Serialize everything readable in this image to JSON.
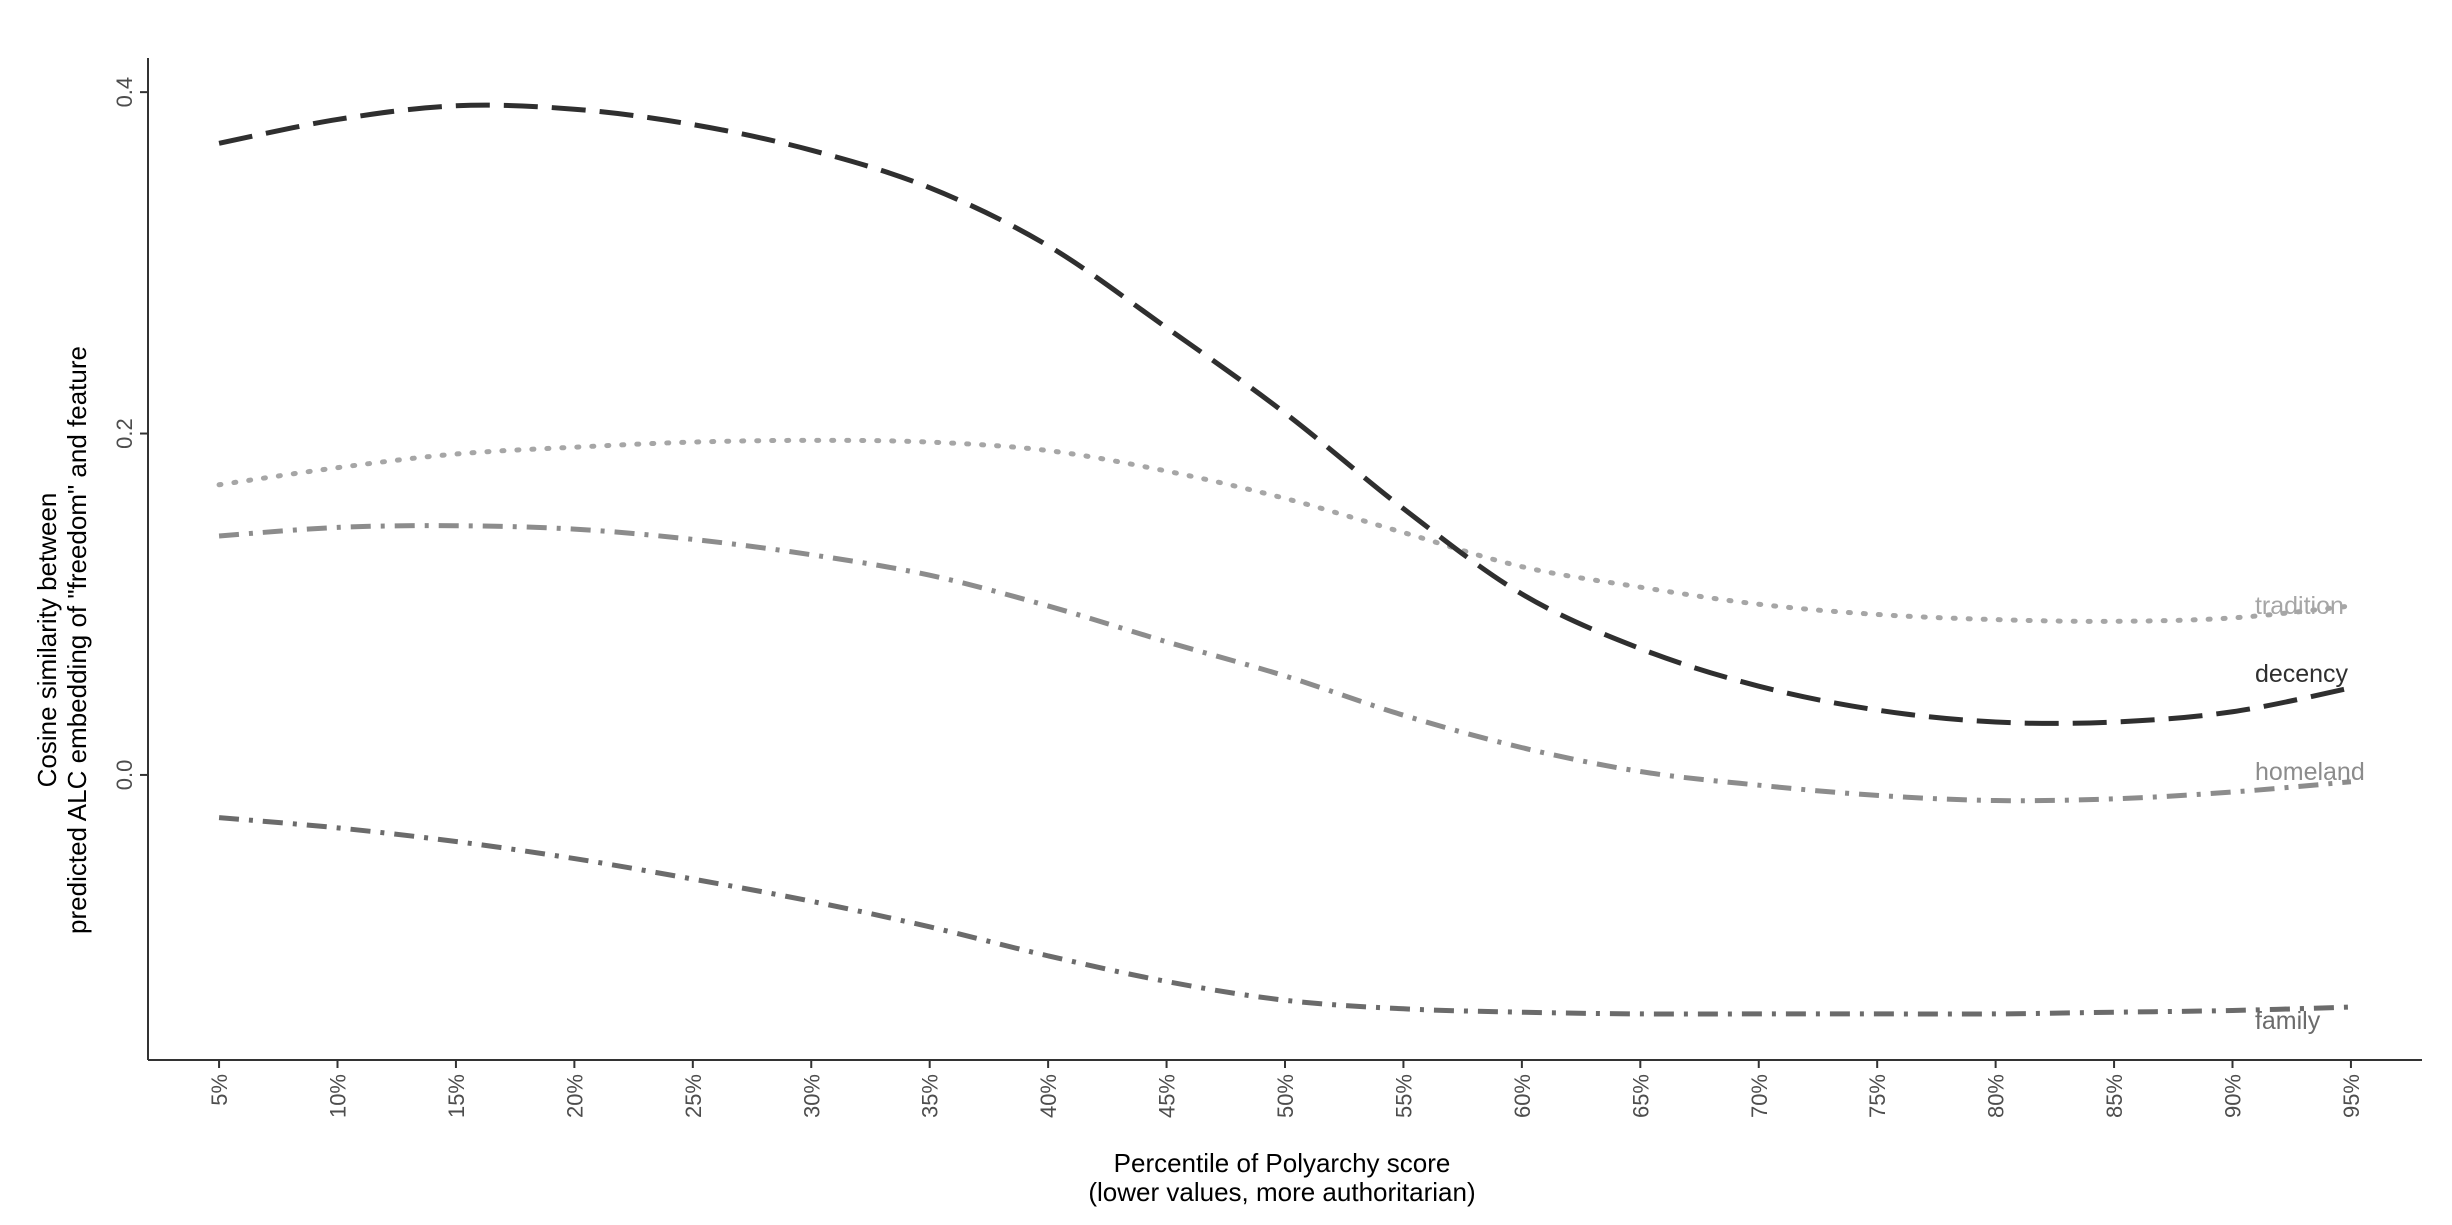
{
  "chart_data": {
    "type": "line",
    "title": "",
    "xlabel": [
      "Percentile of Polyarchy score",
      "(lower values, more authoritarian)"
    ],
    "ylabel": [
      "Cosine similarity between",
      "predicted ALC embedding of \"freedom\" and feature"
    ],
    "x_tick_labels": [
      "5%",
      "10%",
      "15%",
      "20%",
      "25%",
      "30%",
      "35%",
      "40%",
      "45%",
      "50%",
      "55%",
      "60%",
      "65%",
      "70%",
      "75%",
      "80%",
      "85%",
      "90%",
      "95%"
    ],
    "x": [
      5,
      10,
      15,
      20,
      25,
      30,
      35,
      40,
      45,
      50,
      55,
      60,
      65,
      70,
      75,
      80,
      85,
      90,
      95
    ],
    "xlim": [
      2,
      98
    ],
    "y_ticks": [
      0.0,
      0.2,
      0.4
    ],
    "y_tick_labels": [
      "0.0",
      "0.2",
      "0.4"
    ],
    "ylim": [
      -0.167,
      0.42
    ],
    "grid": false,
    "legend": "none (direct labels at line ends)",
    "series": [
      {
        "name": "tradition",
        "color": "#a6a6a6",
        "linetype": "dotted",
        "values": [
          0.17,
          0.18,
          0.188,
          0.192,
          0.195,
          0.196,
          0.195,
          0.19,
          0.178,
          0.162,
          0.142,
          0.122,
          0.11,
          0.1,
          0.094,
          0.091,
          0.09,
          0.092,
          0.099
        ]
      },
      {
        "name": "decency",
        "color": "#2f2f2f",
        "linetype": "longdash",
        "values": [
          0.37,
          0.384,
          0.392,
          0.39,
          0.381,
          0.366,
          0.344,
          0.31,
          0.262,
          0.212,
          0.156,
          0.106,
          0.074,
          0.052,
          0.038,
          0.031,
          0.031,
          0.037,
          0.051
        ]
      },
      {
        "name": "homeland",
        "color": "#8c8c8c",
        "linetype": "dotdash",
        "values": [
          0.14,
          0.145,
          0.146,
          0.144,
          0.138,
          0.129,
          0.117,
          0.099,
          0.078,
          0.058,
          0.035,
          0.016,
          0.002,
          -0.006,
          -0.012,
          -0.015,
          -0.014,
          -0.01,
          -0.004
        ]
      },
      {
        "name": "family",
        "color": "#6b6b6b",
        "linetype": "dotdash",
        "values": [
          -0.025,
          -0.031,
          -0.039,
          -0.049,
          -0.061,
          -0.074,
          -0.089,
          -0.106,
          -0.121,
          -0.132,
          -0.137,
          -0.139,
          -0.14,
          -0.14,
          -0.14,
          -0.14,
          -0.139,
          -0.138,
          -0.136
        ]
      }
    ]
  }
}
